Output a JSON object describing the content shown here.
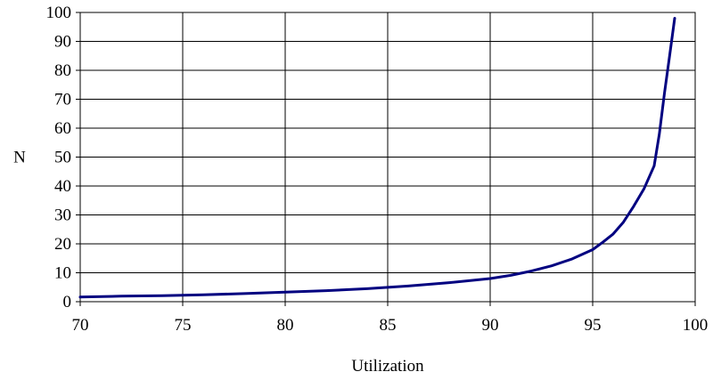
{
  "chart_data": {
    "type": "line",
    "title": "",
    "xlabel": "Utilization",
    "ylabel": "N",
    "xlim": [
      70,
      100
    ],
    "ylim": [
      0,
      100
    ],
    "x_ticks": [
      70,
      75,
      80,
      85,
      90,
      95,
      100
    ],
    "y_ticks": [
      0,
      10,
      20,
      30,
      40,
      50,
      60,
      70,
      80,
      90,
      100
    ],
    "grid": true,
    "legend": "none",
    "series": [
      {
        "color": "#000080",
        "x": [
          70,
          72,
          74,
          76,
          78,
          80,
          82,
          84,
          86,
          88,
          90,
          91,
          92,
          93,
          94,
          95,
          95.5,
          96,
          96.5,
          97,
          97.5,
          98,
          98.25,
          98.5,
          98.75,
          99
        ],
        "y": [
          1.6,
          1.9,
          2.1,
          2.4,
          2.8,
          3.3,
          3.8,
          4.5,
          5.4,
          6.6,
          8.0,
          9.1,
          10.6,
          12.4,
          14.8,
          18.0,
          20.6,
          23.4,
          27.5,
          33.0,
          39.0,
          47.0,
          58.0,
          72.0,
          85.0,
          98.0
        ]
      }
    ]
  }
}
